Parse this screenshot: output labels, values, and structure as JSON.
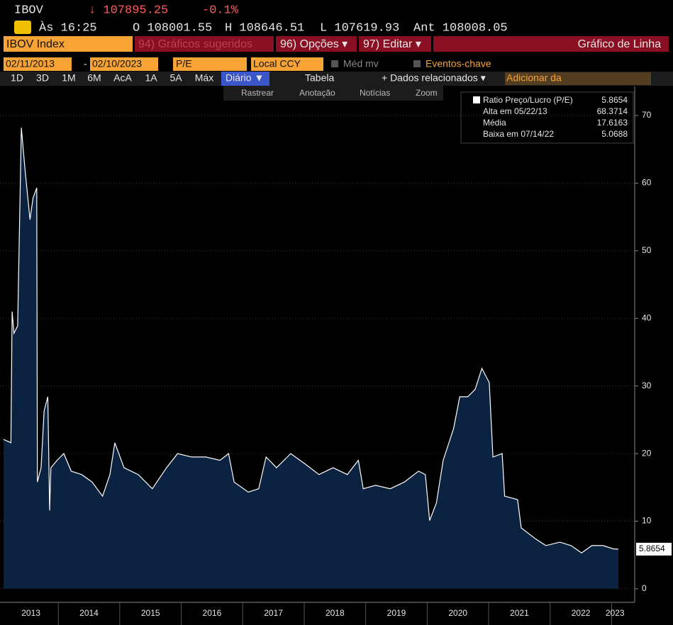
{
  "header": {
    "ticker": "IBOV",
    "last": "↓ 107895.25",
    "change": "-0.1%",
    "time": "Às 16:25",
    "open": "O 108001.55",
    "high": "H 108646.51",
    "low": "L 107619.93",
    "prev": "Ant 108008.05"
  },
  "toolbar": {
    "security": "IBOV Index",
    "suggested": "94) Gráficos sugeridos",
    "options": "96) Opções ▾",
    "edit": "97) Editar ▾",
    "chart_type": "Gráfico de Linha"
  },
  "settings": {
    "start": "02/11/2013",
    "sep": "-",
    "end": "02/10/2023",
    "field": "P/E",
    "currency": "Local CCY",
    "moving_avg": "Méd mv",
    "events": "Eventos-chave"
  },
  "periods": [
    "1D",
    "3D",
    "1M",
    "6M",
    "AcA",
    "1A",
    "5A",
    "Máx"
  ],
  "frequency": "Diário ▼",
  "table": "Tabela",
  "related": "+ Dados relacionados ▾",
  "add": "Adicionar da",
  "tools": [
    "Rastrear",
    "Anotação",
    "Notícias",
    "Zoom"
  ],
  "chart_data": {
    "type": "line",
    "x": [
      2013.11,
      2013.23,
      2013.25,
      2013.28,
      2013.34,
      2013.4,
      2013.46,
      2013.54,
      2013.59,
      2013.65,
      2013.66,
      2013.72,
      2013.77,
      2013.83,
      2013.86,
      2013.88,
      2013.98,
      2014.09,
      2014.21,
      2014.38,
      2014.55,
      2014.72,
      2014.84,
      2014.92,
      2015.07,
      2015.3,
      2015.53,
      2015.76,
      2015.94,
      2016.17,
      2016.4,
      2016.63,
      2016.77,
      2016.86,
      2017.09,
      2017.26,
      2017.38,
      2017.55,
      2017.78,
      2018.01,
      2018.24,
      2018.47,
      2018.7,
      2018.88,
      2018.96,
      2019.16,
      2019.4,
      2019.63,
      2019.86,
      2019.97,
      2020.04,
      2020.15,
      2020.26,
      2020.43,
      2020.53,
      2020.66,
      2020.78,
      2020.89,
      2021.01,
      2021.07,
      2021.22,
      2021.26,
      2021.47,
      2021.53,
      2021.76,
      2021.93,
      2022.16,
      2022.34,
      2022.51,
      2022.68,
      2022.86,
      2023.03,
      2023.11
    ],
    "series": [
      {
        "name": "Ratio Preço/Lucro (P/E)",
        "color": "#ffffff",
        "fill": "#0b2240",
        "values": [
          22.1,
          21.6,
          41,
          37.8,
          38.9,
          68.2,
          62,
          54.6,
          57.8,
          59.3,
          15.8,
          17.9,
          26.3,
          28.4,
          11.6,
          17.9,
          19,
          20,
          17.4,
          16.9,
          15.8,
          13.7,
          16.9,
          21.6,
          17.9,
          16.9,
          14.8,
          17.9,
          20,
          19.5,
          19.5,
          19,
          20,
          15.8,
          14.3,
          14.8,
          19.5,
          17.9,
          20,
          18.5,
          16.9,
          17.9,
          16.9,
          19,
          14.8,
          15.3,
          14.8,
          15.8,
          17.4,
          16.9,
          10.1,
          12.7,
          19,
          23.7,
          28.4,
          28.4,
          29.5,
          32.6,
          30.5,
          19.5,
          20,
          13.7,
          13.2,
          9,
          7.4,
          6.4,
          6.9,
          6.4,
          5.3,
          6.4,
          6.4,
          5.9,
          5.8654
        ]
      }
    ],
    "stats": [
      {
        "label": "Alta em 05/22/13",
        "value": 68.3714
      },
      {
        "label": "Média",
        "value": 17.6163
      },
      {
        "label": "Baixa em 07/14/22",
        "value": 5.0688
      }
    ],
    "xlim": [
      2013.11,
      2023.11
    ],
    "xticks": [
      2014,
      2015,
      2016,
      2017,
      2018,
      2019,
      2020,
      2021,
      2022,
      2023
    ],
    "year_labels": [
      "2013",
      "2014",
      "2015",
      "2016",
      "2017",
      "2018",
      "2019",
      "2020",
      "2021",
      "2022",
      "2023"
    ],
    "ylim": [
      -2,
      74.3
    ],
    "yticks": [
      0,
      10,
      20,
      30,
      40,
      50,
      60,
      70
    ],
    "grid": true
  }
}
